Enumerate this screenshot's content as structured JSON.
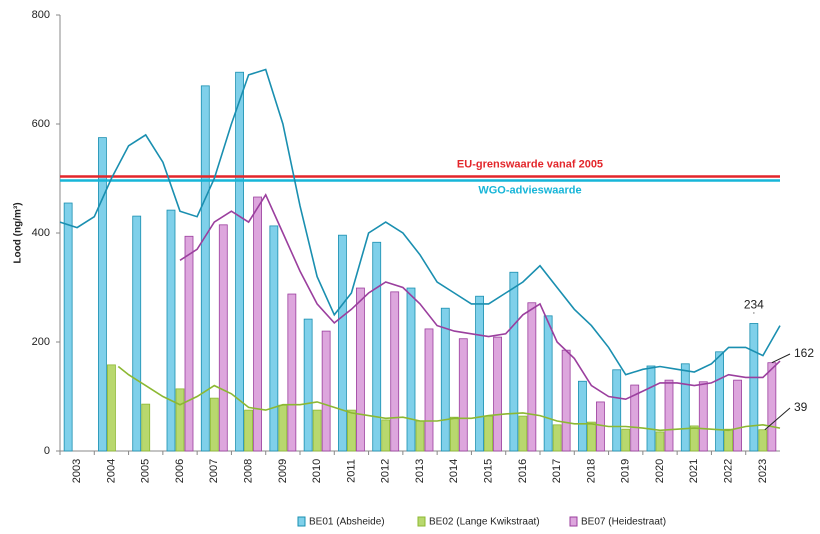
{
  "chart_data": {
    "type": "bar",
    "y_label": "Lood (ng/m³)",
    "categories": [
      "2003",
      "2004",
      "2005",
      "2006",
      "2007",
      "2008",
      "2009",
      "2010",
      "2011",
      "2012",
      "2013",
      "2014",
      "2015",
      "2016",
      "2017",
      "2018",
      "2019",
      "2020",
      "2021",
      "2022",
      "2023"
    ],
    "xlim": [
      2002.5,
      2023.5
    ],
    "ylim": [
      0,
      800
    ],
    "yticks": [
      0,
      200,
      400,
      600,
      800
    ],
    "grid": false,
    "legend": "bottom",
    "reference_lines": [
      {
        "label": "EU-grenswaarde vanaf 2005",
        "value": 500,
        "color": "#e3262b"
      },
      {
        "label": "WGO-advieswaarde",
        "value": 500,
        "color": "#17b5d8"
      }
    ],
    "series": [
      {
        "name": "BE01 (Absheide)",
        "color": "#7fd0ea",
        "line_color": "#1a8fb0",
        "values": [
          455,
          575,
          431,
          442,
          670,
          695,
          413,
          242,
          396,
          383,
          299,
          262,
          284,
          328,
          248,
          128,
          149,
          156,
          160,
          182,
          234
        ],
        "line_x": [
          2002.5,
          2003,
          2003.5,
          2004,
          2004.5,
          2005,
          2005.5,
          2006,
          2006.5,
          2007,
          2007.5,
          2008,
          2008.5,
          2009,
          2009.5,
          2010,
          2010.5,
          2011,
          2011.5,
          2012,
          2012.5,
          2013,
          2013.5,
          2014,
          2014.5,
          2015,
          2015.5,
          2016,
          2016.5,
          2017,
          2017.5,
          2018,
          2018.5,
          2019,
          2019.5,
          2020,
          2020.5,
          2021,
          2021.5,
          2022,
          2022.5,
          2023,
          2023.5
        ],
        "line_values": [
          420,
          410,
          430,
          500,
          560,
          580,
          530,
          440,
          430,
          500,
          600,
          690,
          700,
          600,
          450,
          320,
          250,
          290,
          400,
          420,
          400,
          360,
          310,
          290,
          270,
          270,
          290,
          310,
          340,
          300,
          260,
          230,
          190,
          140,
          150,
          155,
          150,
          145,
          160,
          190,
          190,
          175,
          230
        ]
      },
      {
        "name": "BE02 (Lange Kwikstraat)",
        "color": "#b8d86e",
        "line_color": "#8cb832",
        "values": [
          null,
          158,
          86,
          114,
          97,
          75,
          84,
          75,
          75,
          57,
          55,
          62,
          64,
          64,
          48,
          53,
          40,
          35,
          46,
          40,
          39
        ],
        "line_x": [
          2004.2,
          2004.5,
          2005,
          2005.5,
          2006,
          2006.5,
          2007,
          2007.5,
          2008,
          2008.5,
          2009,
          2009.5,
          2010,
          2010.5,
          2011,
          2011.5,
          2012,
          2012.5,
          2013,
          2013.5,
          2014,
          2014.5,
          2015,
          2015.5,
          2016,
          2016.5,
          2017,
          2017.5,
          2018,
          2018.5,
          2019,
          2019.5,
          2020,
          2020.5,
          2021,
          2021.5,
          2022,
          2022.5,
          2023,
          2023.5
        ],
        "line_values": [
          155,
          140,
          120,
          100,
          85,
          100,
          120,
          105,
          80,
          75,
          85,
          85,
          90,
          80,
          70,
          65,
          60,
          62,
          55,
          55,
          60,
          60,
          65,
          68,
          70,
          65,
          55,
          50,
          50,
          45,
          45,
          42,
          38,
          40,
          42,
          40,
          38,
          45,
          48,
          42
        ]
      },
      {
        "name": "BE07 (Heidestraat)",
        "color": "#dda6dd",
        "line_color": "#9b3f9e",
        "values": [
          null,
          null,
          null,
          394,
          415,
          466,
          288,
          220,
          299,
          292,
          224,
          206,
          209,
          272,
          185,
          90,
          121,
          130,
          127,
          130,
          162
        ],
        "line_x": [
          2006,
          2006.5,
          2007,
          2007.5,
          2008,
          2008.5,
          2009,
          2009.5,
          2010,
          2010.5,
          2011,
          2011.5,
          2012,
          2012.5,
          2013,
          2013.5,
          2014,
          2014.5,
          2015,
          2015.5,
          2016,
          2016.5,
          2017,
          2017.5,
          2018,
          2018.5,
          2019,
          2019.5,
          2020,
          2020.5,
          2021,
          2021.5,
          2022,
          2022.5,
          2023,
          2023.5
        ],
        "line_values": [
          350,
          370,
          420,
          440,
          420,
          470,
          400,
          330,
          270,
          235,
          260,
          290,
          310,
          300,
          270,
          230,
          220,
          215,
          210,
          215,
          250,
          270,
          200,
          170,
          120,
          100,
          95,
          110,
          125,
          125,
          120,
          125,
          140,
          135,
          135,
          165
        ]
      }
    ]
  }
}
